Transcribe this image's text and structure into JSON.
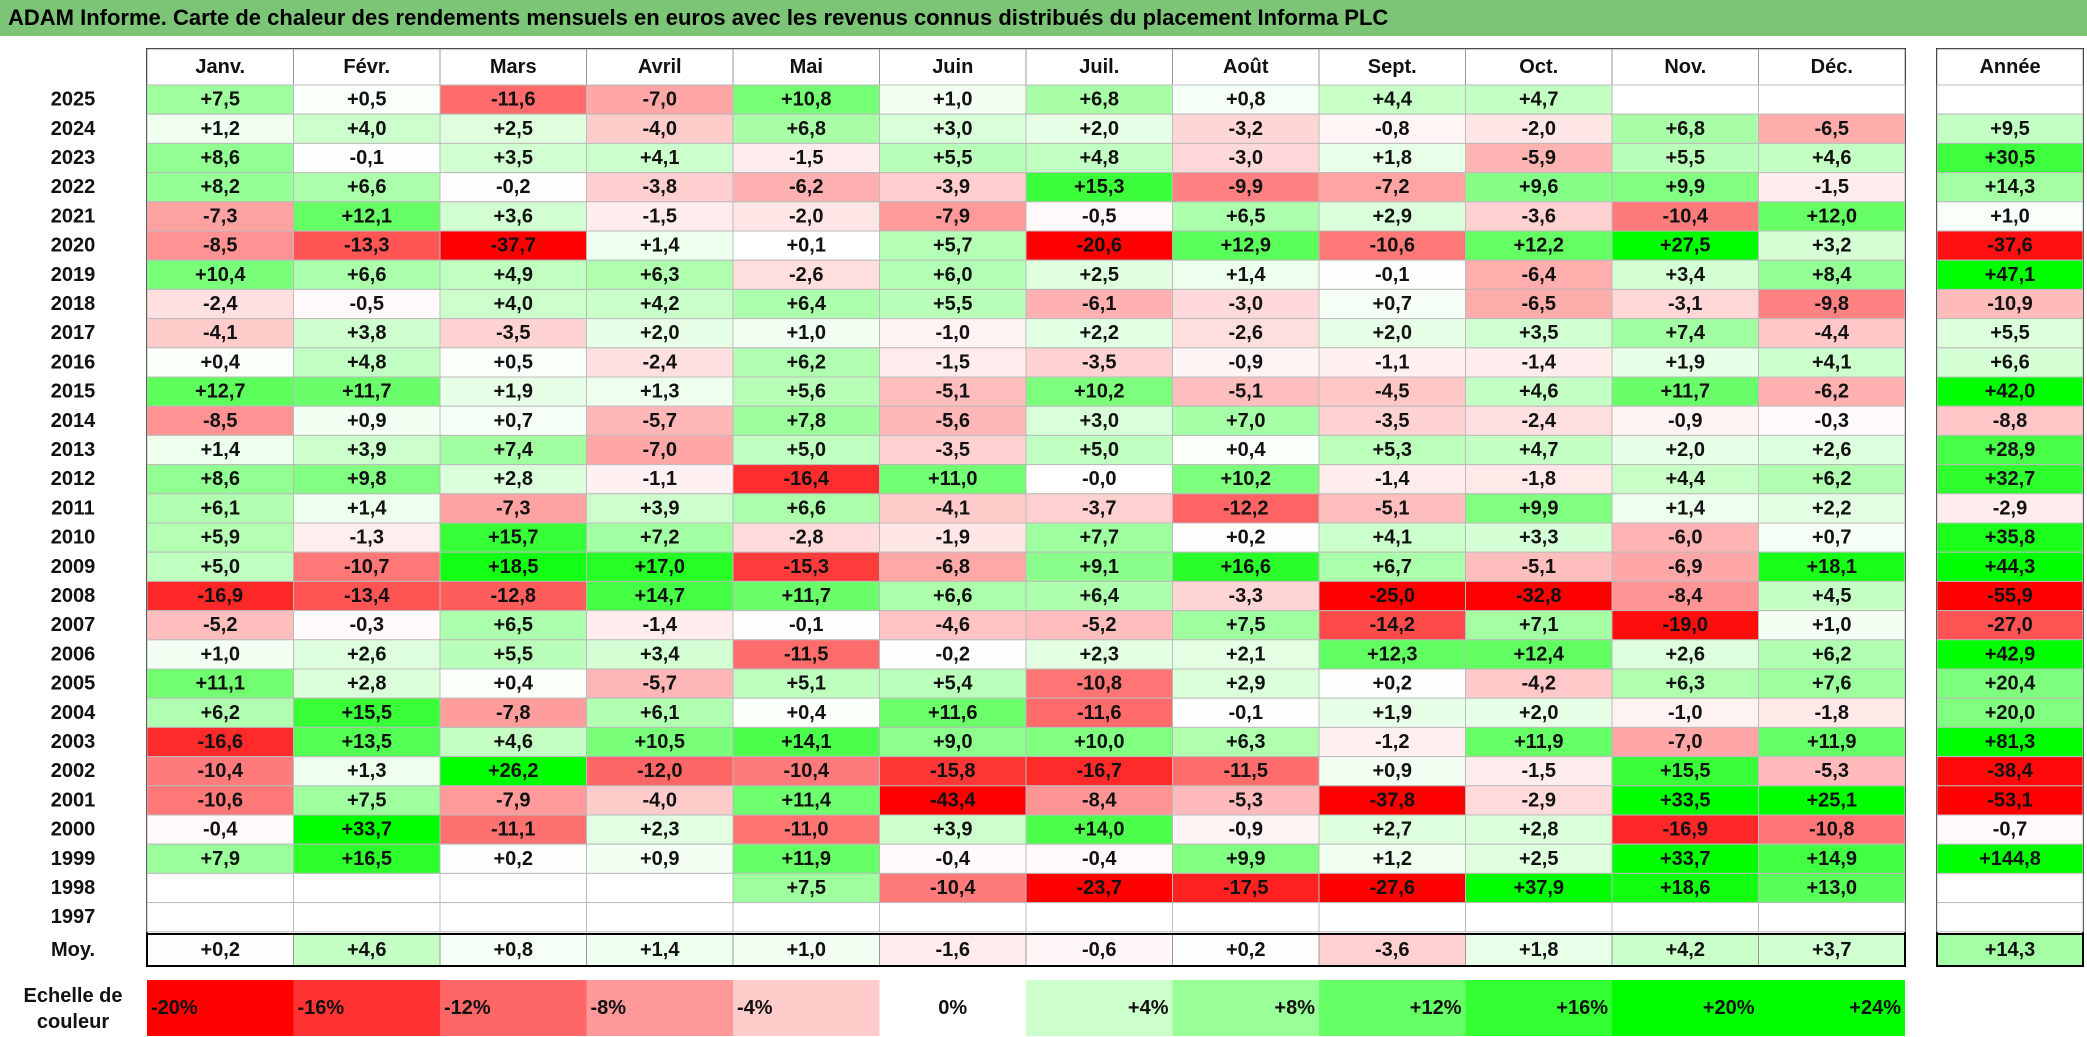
{
  "title": "ADAM Informe. Carte de chaleur des rendements mensuels en euros avec les revenus connus distribués du placement Informa PLC",
  "chart_data": {
    "type": "heatmap",
    "months": [
      "Janv.",
      "Févr.",
      "Mars",
      "Avril",
      "Mai",
      "Juin",
      "Juil.",
      "Août",
      "Sept.",
      "Oct.",
      "Nov.",
      "Déc."
    ],
    "annual_header": "Année",
    "rows": [
      {
        "year": "2025",
        "values": [
          "+7,5",
          "+0,5",
          "-11,6",
          "-7,0",
          "+10,8",
          "+1,0",
          "+6,8",
          "+0,8",
          "+4,4",
          "+4,7",
          "",
          ""
        ],
        "annual": ""
      },
      {
        "year": "2024",
        "values": [
          "+1,2",
          "+4,0",
          "+2,5",
          "-4,0",
          "+6,8",
          "+3,0",
          "+2,0",
          "-3,2",
          "-0,8",
          "-2,0",
          "+6,8",
          "-6,5"
        ],
        "annual": "+9,5"
      },
      {
        "year": "2023",
        "values": [
          "+8,6",
          "-0,1",
          "+3,5",
          "+4,1",
          "-1,5",
          "+5,5",
          "+4,8",
          "-3,0",
          "+1,8",
          "-5,9",
          "+5,5",
          "+4,6"
        ],
        "annual": "+30,5"
      },
      {
        "year": "2022",
        "values": [
          "+8,2",
          "+6,6",
          "-0,2",
          "-3,8",
          "-6,2",
          "-3,9",
          "+15,3",
          "-9,9",
          "-7,2",
          "+9,6",
          "+9,9",
          "-1,5"
        ],
        "annual": "+14,3"
      },
      {
        "year": "2021",
        "values": [
          "-7,3",
          "+12,1",
          "+3,6",
          "-1,5",
          "-2,0",
          "-7,9",
          "-0,5",
          "+6,5",
          "+2,9",
          "-3,6",
          "-10,4",
          "+12,0"
        ],
        "annual": "+1,0"
      },
      {
        "year": "2020",
        "values": [
          "-8,5",
          "-13,3",
          "-37,7",
          "+1,4",
          "+0,1",
          "+5,7",
          "-20,6",
          "+12,9",
          "-10,6",
          "+12,2",
          "+27,5",
          "+3,2"
        ],
        "annual": "-37,6"
      },
      {
        "year": "2019",
        "values": [
          "+10,4",
          "+6,6",
          "+4,9",
          "+6,3",
          "-2,6",
          "+6,0",
          "+2,5",
          "+1,4",
          "-0,1",
          "-6,4",
          "+3,4",
          "+8,4"
        ],
        "annual": "+47,1"
      },
      {
        "year": "2018",
        "values": [
          "-2,4",
          "-0,5",
          "+4,0",
          "+4,2",
          "+6,4",
          "+5,5",
          "-6,1",
          "-3,0",
          "+0,7",
          "-6,5",
          "-3,1",
          "-9,8"
        ],
        "annual": "-10,9"
      },
      {
        "year": "2017",
        "values": [
          "-4,1",
          "+3,8",
          "-3,5",
          "+2,0",
          "+1,0",
          "-1,0",
          "+2,2",
          "-2,6",
          "+2,0",
          "+3,5",
          "+7,4",
          "-4,4"
        ],
        "annual": "+5,5"
      },
      {
        "year": "2016",
        "values": [
          "+0,4",
          "+4,8",
          "+0,5",
          "-2,4",
          "+6,2",
          "-1,5",
          "-3,5",
          "-0,9",
          "-1,1",
          "-1,4",
          "+1,9",
          "+4,1"
        ],
        "annual": "+6,6"
      },
      {
        "year": "2015",
        "values": [
          "+12,7",
          "+11,7",
          "+1,9",
          "+1,3",
          "+5,6",
          "-5,1",
          "+10,2",
          "-5,1",
          "-4,5",
          "+4,6",
          "+11,7",
          "-6,2"
        ],
        "annual": "+42,0"
      },
      {
        "year": "2014",
        "values": [
          "-8,5",
          "+0,9",
          "+0,7",
          "-5,7",
          "+7,8",
          "-5,6",
          "+3,0",
          "+7,0",
          "-3,5",
          "-2,4",
          "-0,9",
          "-0,3"
        ],
        "annual": "-8,8"
      },
      {
        "year": "2013",
        "values": [
          "+1,4",
          "+3,9",
          "+7,4",
          "-7,0",
          "+5,0",
          "-3,5",
          "+5,0",
          "+0,4",
          "+5,3",
          "+4,7",
          "+2,0",
          "+2,6"
        ],
        "annual": "+28,9"
      },
      {
        "year": "2012",
        "values": [
          "+8,6",
          "+9,8",
          "+2,8",
          "-1,1",
          "-16,4",
          "+11,0",
          "-0,0",
          "+10,2",
          "-1,4",
          "-1,8",
          "+4,4",
          "+6,2"
        ],
        "annual": "+32,7"
      },
      {
        "year": "2011",
        "values": [
          "+6,1",
          "+1,4",
          "-7,3",
          "+3,9",
          "+6,6",
          "-4,1",
          "-3,7",
          "-12,2",
          "-5,1",
          "+9,9",
          "+1,4",
          "+2,2"
        ],
        "annual": "-2,9"
      },
      {
        "year": "2010",
        "values": [
          "+5,9",
          "-1,3",
          "+15,7",
          "+7,2",
          "-2,8",
          "-1,9",
          "+7,7",
          "+0,2",
          "+4,1",
          "+3,3",
          "-6,0",
          "+0,7"
        ],
        "annual": "+35,8"
      },
      {
        "year": "2009",
        "values": [
          "+5,0",
          "-10,7",
          "+18,5",
          "+17,0",
          "-15,3",
          "-6,8",
          "+9,1",
          "+16,6",
          "+6,7",
          "-5,1",
          "-6,9",
          "+18,1"
        ],
        "annual": "+44,3"
      },
      {
        "year": "2008",
        "values": [
          "-16,9",
          "-13,4",
          "-12,8",
          "+14,7",
          "+11,7",
          "+6,6",
          "+6,4",
          "-3,3",
          "-25,0",
          "-32,8",
          "-8,4",
          "+4,5"
        ],
        "annual": "-55,9"
      },
      {
        "year": "2007",
        "values": [
          "-5,2",
          "-0,3",
          "+6,5",
          "-1,4",
          "-0,1",
          "-4,6",
          "-5,2",
          "+7,5",
          "-14,2",
          "+7,1",
          "-19,0",
          "+1,0"
        ],
        "annual": "-27,0"
      },
      {
        "year": "2006",
        "values": [
          "+1,0",
          "+2,6",
          "+5,5",
          "+3,4",
          "-11,5",
          "-0,2",
          "+2,3",
          "+2,1",
          "+12,3",
          "+12,4",
          "+2,6",
          "+6,2"
        ],
        "annual": "+42,9"
      },
      {
        "year": "2005",
        "values": [
          "+11,1",
          "+2,8",
          "+0,4",
          "-5,7",
          "+5,1",
          "+5,4",
          "-10,8",
          "+2,9",
          "+0,2",
          "-4,2",
          "+6,3",
          "+7,6"
        ],
        "annual": "+20,4"
      },
      {
        "year": "2004",
        "values": [
          "+6,2",
          "+15,5",
          "-7,8",
          "+6,1",
          "+0,4",
          "+11,6",
          "-11,6",
          "-0,1",
          "+1,9",
          "+2,0",
          "-1,0",
          "-1,8"
        ],
        "annual": "+20,0"
      },
      {
        "year": "2003",
        "values": [
          "-16,6",
          "+13,5",
          "+4,6",
          "+10,5",
          "+14,1",
          "+9,0",
          "+10,0",
          "+6,3",
          "-1,2",
          "+11,9",
          "-7,0",
          "+11,9"
        ],
        "annual": "+81,3"
      },
      {
        "year": "2002",
        "values": [
          "-10,4",
          "+1,3",
          "+26,2",
          "-12,0",
          "-10,4",
          "-15,8",
          "-16,7",
          "-11,5",
          "+0,9",
          "-1,5",
          "+15,5",
          "-5,3"
        ],
        "annual": "-38,4"
      },
      {
        "year": "2001",
        "values": [
          "-10,6",
          "+7,5",
          "-7,9",
          "-4,0",
          "+11,4",
          "-43,4",
          "-8,4",
          "-5,3",
          "-37,8",
          "-2,9",
          "+33,5",
          "+25,1"
        ],
        "annual": "-53,1"
      },
      {
        "year": "2000",
        "values": [
          "-0,4",
          "+33,7",
          "-11,1",
          "+2,3",
          "-11,0",
          "+3,9",
          "+14,0",
          "-0,9",
          "+2,7",
          "+2,8",
          "-16,9",
          "-10,8"
        ],
        "annual": "-0,7"
      },
      {
        "year": "1999",
        "values": [
          "+7,9",
          "+16,5",
          "+0,2",
          "+0,9",
          "+11,9",
          "-0,4",
          "-0,4",
          "+9,9",
          "+1,2",
          "+2,5",
          "+33,7",
          "+14,9"
        ],
        "annual": "+144,8"
      },
      {
        "year": "1998",
        "values": [
          "",
          "",
          "",
          "",
          "+7,5",
          "-10,4",
          "-23,7",
          "-17,5",
          "-27,6",
          "+37,9",
          "+18,6",
          "+13,0"
        ],
        "annual": ""
      },
      {
        "year": "1997",
        "values": [
          "",
          "",
          "",
          "",
          "",
          "",
          "",
          "",
          "",
          "",
          "",
          ""
        ],
        "annual": ""
      }
    ],
    "average": {
      "label": "Moy.",
      "values": [
        "+0,2",
        "+4,6",
        "+0,8",
        "+1,4",
        "+1,0",
        "-1,6",
        "-0,6",
        "+0,2",
        "-3,6",
        "+1,8",
        "+4,2",
        "+3,7"
      ],
      "annual": "+14,3"
    },
    "scale": {
      "label_line1": "Echelle de",
      "label_line2": "couleur",
      "entries": [
        "-20%",
        "-16%",
        "-12%",
        "-8%",
        "-4%",
        "0%",
        "+4%",
        "+8%",
        "+12%",
        "+16%",
        "+20%",
        "+24%"
      ],
      "colors": [
        "#ff0000",
        "#ff3333",
        "#ff6666",
        "#ff9999",
        "#ffcccc",
        "#ffffff",
        "#ccffcc",
        "#99ff99",
        "#66ff66",
        "#33ff33",
        "#00ff00",
        "#00ff00"
      ]
    },
    "colors": {
      "negative": "#ff0000",
      "positive": "#00ff00",
      "neutral": "#ffffff",
      "title_bar": "#7cc576"
    }
  }
}
